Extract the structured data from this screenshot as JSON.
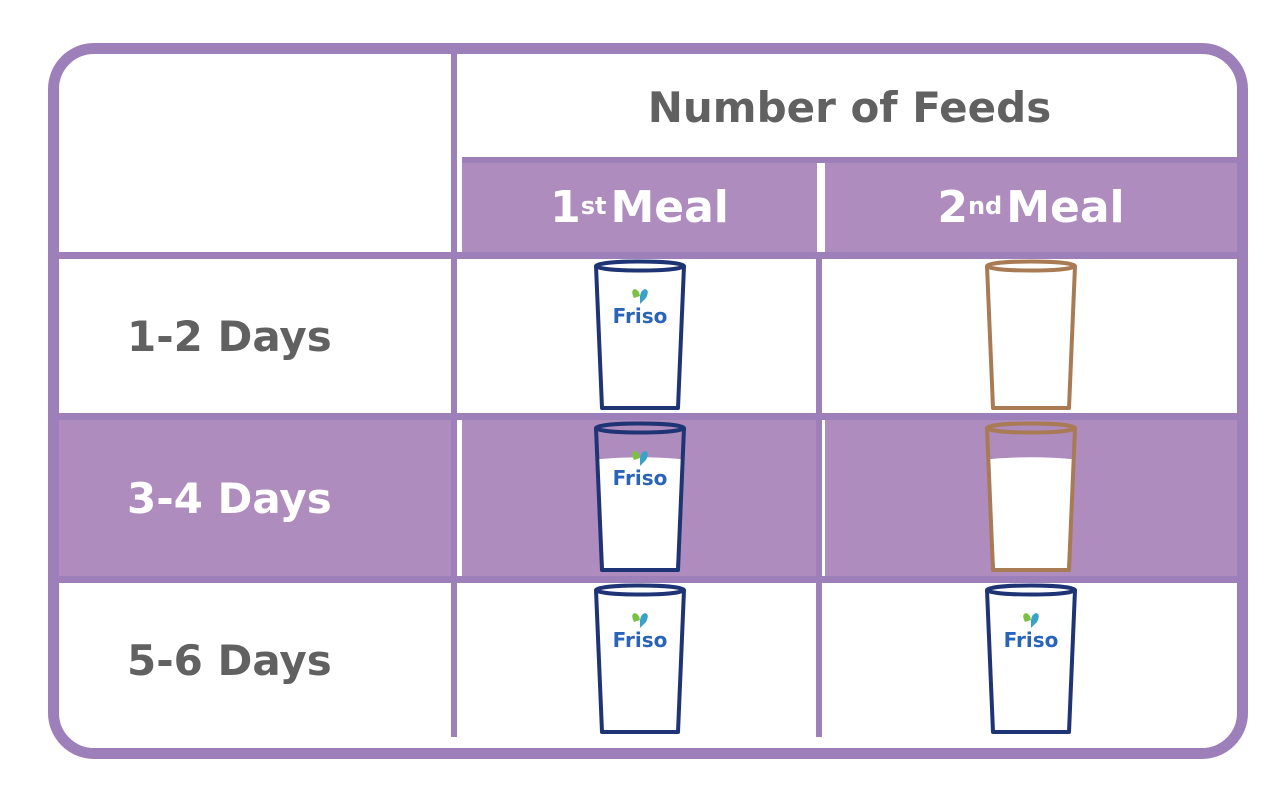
{
  "header": {
    "title": "Number of Feeds",
    "meal1": {
      "num": "1",
      "sup": "st",
      "word": "Meal"
    },
    "meal2": {
      "num": "2",
      "sup": "nd",
      "word": "Meal"
    }
  },
  "rows": [
    {
      "label": "1-2 Days",
      "meal1": {
        "brand": "Friso",
        "fill": 0
      },
      "meal2": {
        "brand": "",
        "fill": 0
      }
    },
    {
      "label": "3-4 Days",
      "meal1": {
        "brand": "Friso",
        "fill": 0.78
      },
      "meal2": {
        "brand": "",
        "fill": 0.78
      }
    },
    {
      "label": "5-6 Days",
      "meal1": {
        "brand": "Friso",
        "fill": 0
      },
      "meal2": {
        "brand": "Friso",
        "fill": 0
      }
    }
  ],
  "colors": {
    "frame": "#9d7fba",
    "shade": "#ae8cbd",
    "text": "#616161",
    "friso_cup": "#1f3474",
    "plain_cup": "#a87b54",
    "logo_blue": "#2a64b8",
    "logo_green": "#7cc242"
  }
}
